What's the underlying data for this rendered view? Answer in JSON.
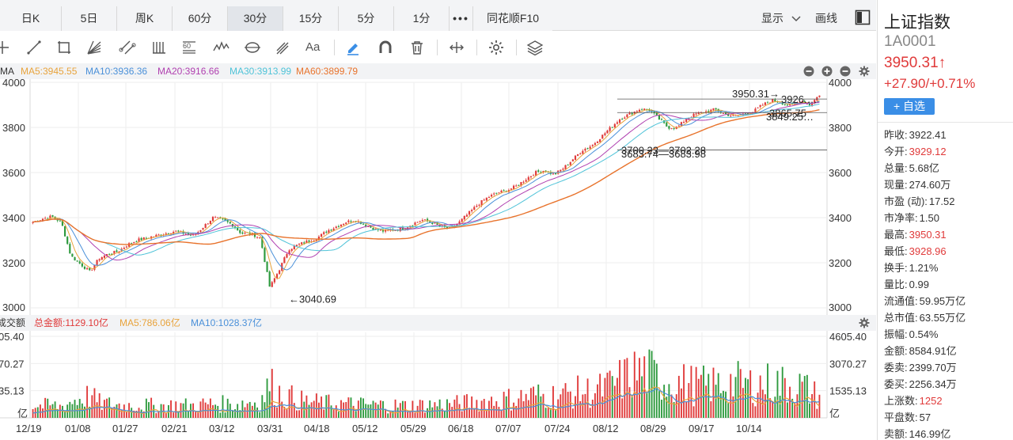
{
  "tabs": [
    {
      "label": "日K",
      "active": false
    },
    {
      "label": "5日",
      "active": false
    },
    {
      "label": "周K",
      "active": false
    },
    {
      "label": "60分",
      "active": false
    },
    {
      "label": "30分",
      "active": true
    },
    {
      "label": "15分",
      "active": false
    },
    {
      "label": "5分",
      "active": false
    },
    {
      "label": "1分",
      "active": false
    },
    {
      "label": "•••",
      "active": false
    },
    {
      "label": "同花顺F10",
      "active": false
    }
  ],
  "display_label": "显示",
  "draw_label": "画线",
  "toolbar": {
    "text_tool_label": "Aa",
    "icons": [
      "crosshair-icon",
      "line-icon",
      "rect-icon",
      "fan-icon",
      "channel-icon",
      "bars-icon",
      "fib-icon",
      "wave-icon",
      "cycle-icon",
      "pitchfork-icon",
      "text-icon",
      "pencil-icon",
      "magnet-icon",
      "trash-icon",
      "measure-icon",
      "settings-icon",
      "layers-icon"
    ]
  },
  "ma_legend": {
    "prefix": "MA",
    "items": [
      {
        "label": "MA5:3945.55",
        "color": "#e8a33c"
      },
      {
        "label": "MA10:3936.36",
        "color": "#4a90d9"
      },
      {
        "label": "MA20:3916.66",
        "color": "#b040b0"
      },
      {
        "label": "MA30:3913.99",
        "color": "#4fc3d8"
      },
      {
        "label": "MA60:3899.79",
        "color": "#e8732c"
      }
    ]
  },
  "vol_legend": {
    "prefix": "成交额",
    "items": [
      {
        "label": "总金额:1129.10亿",
        "color": "#e03a3a"
      },
      {
        "label": "MA5:786.06亿",
        "color": "#e8a33c"
      },
      {
        "label": "MA10:1028.37亿",
        "color": "#4a90d9"
      }
    ]
  },
  "chart_data": {
    "type": "candlestick",
    "price_axis": {
      "ticks": [
        "4000",
        "3800",
        "3600",
        "3400",
        "3200",
        "3000"
      ],
      "range": [
        3000,
        4000
      ]
    },
    "volume_axis": {
      "left_ticks": [
        "05.40",
        "70.27",
        "35.13",
        "亿"
      ],
      "right_ticks": [
        "4605.40",
        "3070.27",
        "1535.13",
        "亿"
      ],
      "range": [
        0,
        4605.4
      ]
    },
    "x_ticks": [
      "12/19",
      "01/08",
      "01/27",
      "02/21",
      "03/12",
      "03/31",
      "04/18",
      "05/12",
      "05/29",
      "06/18",
      "07/07",
      "07/24",
      "08/12",
      "08/29",
      "09/17",
      "10/14"
    ],
    "close_series": [
      3380,
      3395,
      3405,
      3380,
      3230,
      3195,
      3160,
      3220,
      3240,
      3250,
      3280,
      3300,
      3310,
      3320,
      3330,
      3340,
      3330,
      3320,
      3360,
      3400,
      3390,
      3370,
      3330,
      3330,
      3310,
      3090,
      3170,
      3260,
      3280,
      3295,
      3310,
      3340,
      3360,
      3380,
      3390,
      3370,
      3350,
      3340,
      3345,
      3350,
      3370,
      3390,
      3380,
      3360,
      3350,
      3380,
      3420,
      3460,
      3490,
      3510,
      3520,
      3540,
      3570,
      3600,
      3610,
      3590,
      3620,
      3660,
      3700,
      3720,
      3760,
      3800,
      3840,
      3860,
      3880,
      3880,
      3840,
      3800,
      3800,
      3840,
      3860,
      3870,
      3880,
      3860,
      3850,
      3860,
      3870,
      3900,
      3920,
      3910,
      3895,
      3920,
      3900,
      3945
    ],
    "annotations": [
      {
        "label": "←3040.69",
        "value": 3040.69
      },
      {
        "label": "3950.31→",
        "value": 3950.31
      },
      {
        "label": "3700.23—3702.28",
        "value": 3700.23
      },
      {
        "label": "3683.74—3683.98",
        "value": 3683.74
      },
      {
        "label": "3926.…",
        "value": 3926
      },
      {
        "label": "3865.75",
        "value": 3865.75
      },
      {
        "label": "3849.25…",
        "value": 3849.25
      }
    ],
    "volume_values": [
      720,
      680,
      700,
      650,
      900,
      1100,
      1250,
      850,
      780,
      720,
      700,
      740,
      700,
      690,
      680,
      720,
      710,
      690,
      760,
      800,
      780,
      760,
      820,
      900,
      900,
      1900,
      1400,
      1200,
      1000,
      900,
      860,
      820,
      800,
      790,
      760,
      740,
      720,
      730,
      700,
      690,
      700,
      720,
      740,
      760,
      780,
      800,
      860,
      900,
      960,
      1000,
      1050,
      1100,
      1200,
      1300,
      1200,
      1250,
      1300,
      1400,
      1500,
      1450,
      1600,
      1800,
      2100,
      2400,
      2600,
      2500,
      2200,
      2100,
      2000,
      1900,
      1850,
      1800,
      1850,
      1950,
      2000,
      1900,
      1850,
      1900,
      2000,
      1900,
      1850,
      1800,
      1500,
      1129
    ]
  },
  "info": {
    "name": "上证指数",
    "code": "1A0001",
    "price": "3950.31↑",
    "change": "+27.90/+0.71%",
    "fav_label": "+ 自选",
    "stats": [
      {
        "k": "昨收:",
        "v": "3922.41",
        "color": "#333333"
      },
      {
        "k": "今开:",
        "v": "3929.12",
        "color": "#e03a3a"
      },
      {
        "k": "总量:",
        "v": "5.68亿",
        "color": "#333333"
      },
      {
        "k": "现量:",
        "v": "274.60万",
        "color": "#333333"
      },
      {
        "k": "市盈 (动):",
        "v": "17.52",
        "color": "#333333"
      },
      {
        "k": "市净率:",
        "v": "1.50",
        "color": "#333333"
      },
      {
        "k": "最高:",
        "v": "3950.31",
        "color": "#e03a3a"
      },
      {
        "k": "最低:",
        "v": "3928.96",
        "color": "#e03a3a"
      },
      {
        "k": "换手:",
        "v": "1.21%",
        "color": "#333333"
      },
      {
        "k": "量比:",
        "v": "0.99",
        "color": "#333333"
      },
      {
        "k": "流通值:",
        "v": "59.95万亿",
        "color": "#333333"
      },
      {
        "k": "总市值:",
        "v": "63.55万亿",
        "color": "#333333"
      },
      {
        "k": "振幅:",
        "v": "0.54%",
        "color": "#333333"
      },
      {
        "k": "金额:",
        "v": "8584.91亿",
        "color": "#333333"
      },
      {
        "k": "委卖:",
        "v": "2399.70万",
        "color": "#333333"
      },
      {
        "k": "委买:",
        "v": "2256.34万",
        "color": "#333333"
      },
      {
        "k": "上涨数:",
        "v": "1252",
        "color": "#e03a3a"
      },
      {
        "k": "平盘数:",
        "v": "57",
        "color": "#333333"
      },
      {
        "k": "卖额:",
        "v": "146.99亿",
        "color": "#333333"
      }
    ]
  },
  "colors": {
    "up": "#e03a3a",
    "down": "#2e9a3e",
    "accent": "#3a8ee6"
  }
}
